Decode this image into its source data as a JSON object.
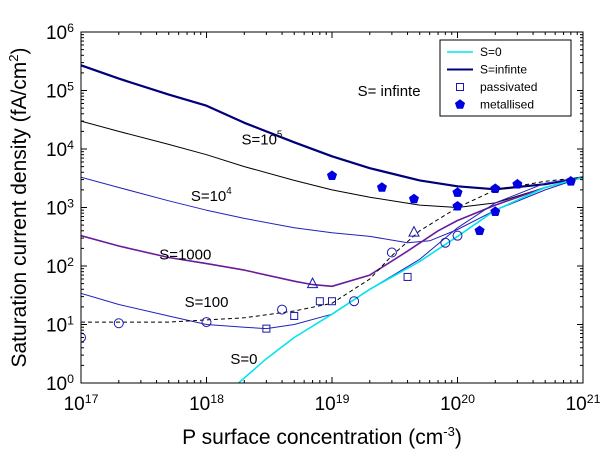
{
  "chart_data": {
    "type": "line",
    "xlabel": "P surface concentration (cm",
    "xlabel_sup": "-3",
    "xlabel_close": ")",
    "ylabel": "Saturation current density (fA/cm",
    "ylabel_sup": "2",
    "ylabel_close": ")",
    "x_scale": "log",
    "y_scale": "log",
    "xlim": [
      1e+17,
      1e+21
    ],
    "ylim": [
      1,
      1000000
    ],
    "x_ticks": [
      {
        "value": 1e+17,
        "base": "10",
        "exp": "17"
      },
      {
        "value": 1e+18,
        "base": "10",
        "exp": "18"
      },
      {
        "value": 1e+19,
        "base": "10",
        "exp": "19"
      },
      {
        "value": 1e+20,
        "base": "10",
        "exp": "20"
      },
      {
        "value": 1e+21,
        "base": "10",
        "exp": "21"
      }
    ],
    "y_ticks": [
      {
        "value": 1,
        "base": "10",
        "exp": "0"
      },
      {
        "value": 10,
        "base": "10",
        "exp": "1"
      },
      {
        "value": 100,
        "base": "10",
        "exp": "2"
      },
      {
        "value": 1000,
        "base": "10",
        "exp": "3"
      },
      {
        "value": 10000,
        "base": "10",
        "exp": "4"
      },
      {
        "value": 100000,
        "base": "10",
        "exp": "5"
      },
      {
        "value": 1000000,
        "base": "10",
        "exp": "6"
      }
    ],
    "colors": {
      "s_zero": "#00e5ee",
      "s_infinite": "#00007a",
      "s_1e5": "#000000",
      "s_1e4": "#2222bb",
      "s_1000": "#6a1b9a",
      "s_100": "#2222bb",
      "dashed": "#000000",
      "markers": "#1a1aa8",
      "metallised": "#0000e0"
    },
    "legend": {
      "placement": "top-right",
      "entries": [
        {
          "key": "s0",
          "label": "S=0",
          "kind": "line",
          "color": "#00e5ee"
        },
        {
          "key": "sinf",
          "label": "S=infinte",
          "kind": "line",
          "color": "#00007a"
        },
        {
          "key": "pass",
          "label": "passivated",
          "kind": "open-square",
          "color": "#1a1aa8"
        },
        {
          "key": "met",
          "label": "metallised",
          "kind": "filled-pentagon",
          "color": "#0000e0"
        }
      ]
    },
    "annotations": [
      {
        "key": "ann-inf",
        "text": "S= infinte",
        "x": 1.6e+19,
        "y": 80000
      },
      {
        "key": "ann-1e5",
        "text": "S=10",
        "sup": "5",
        "x": 1.9e+18,
        "y": 12000
      },
      {
        "key": "ann-1e4",
        "text": "S=10",
        "sup": "4",
        "x": 7.5e+17,
        "y": 1300
      },
      {
        "key": "ann-1000",
        "text": "S=1000",
        "x": 4.2e+17,
        "y": 130
      },
      {
        "key": "ann-100",
        "text": "S=100",
        "x": 6.7e+17,
        "y": 20
      },
      {
        "key": "ann-0",
        "text": "S=0",
        "x": 1.55e+18,
        "y": 2.1
      }
    ],
    "series": [
      {
        "key": "s-infinite",
        "style": "solid",
        "color": "#00007a",
        "width": 2.2,
        "x": [
          1e+17,
          2e+17,
          5e+17,
          1e+18,
          2e+18,
          5e+18,
          1e+19,
          2e+19,
          5e+19,
          1e+20,
          2e+20,
          5e+20,
          8e+20,
          1e+21
        ],
        "y": [
          270000,
          160000,
          85000,
          55000,
          28000,
          13000,
          7500,
          4700,
          2900,
          2300,
          2050,
          2500,
          3000,
          3300
        ]
      },
      {
        "key": "s-1e5",
        "style": "solid",
        "color": "#000000",
        "width": 1,
        "x": [
          1e+17,
          2e+17,
          5e+17,
          1e+18,
          2e+18,
          5e+18,
          1e+19,
          2e+19,
          5e+19,
          1e+20,
          2e+20,
          5e+20,
          1e+21
        ],
        "y": [
          30000,
          20000,
          12000,
          8000,
          5000,
          2900,
          2000,
          1500,
          1100,
          1000,
          1200,
          2200,
          3300
        ]
      },
      {
        "key": "s-1e4",
        "style": "solid",
        "color": "#2222bb",
        "width": 1,
        "x": [
          1e+17,
          2e+17,
          5e+17,
          1e+18,
          2e+18,
          5e+18,
          1e+19,
          2e+19,
          4e+19,
          6e+19,
          1e+20,
          2e+20,
          5e+20,
          1e+21
        ],
        "y": [
          3300,
          2200,
          1300,
          900,
          650,
          450,
          370,
          320,
          250,
          270,
          420,
          900,
          2000,
          3300
        ]
      },
      {
        "key": "s-1000",
        "style": "solid",
        "color": "#6a1b9a",
        "width": 1.6,
        "x": [
          1e+17,
          2e+17,
          5e+17,
          1e+18,
          2e+18,
          5e+18,
          7e+18,
          1e+19,
          2e+19,
          4e+19,
          7e+19,
          1e+20,
          2e+20,
          5e+20,
          1e+21
        ],
        "y": [
          330,
          220,
          140,
          110,
          85,
          55,
          48,
          45,
          70,
          180,
          400,
          600,
          1100,
          2200,
          3300
        ]
      },
      {
        "key": "s-100",
        "style": "solid",
        "color": "#2222bb",
        "width": 1,
        "x": [
          1e+17,
          2e+17,
          5e+17,
          1e+18,
          2e+18,
          3e+18,
          5e+18,
          1e+19,
          2e+19,
          5e+19,
          1e+20,
          2e+20,
          5e+20,
          1e+21
        ],
        "y": [
          34,
          22,
          14,
          10,
          9,
          8.5,
          10,
          15,
          40,
          130,
          450,
          1200,
          2600,
          3300
        ]
      },
      {
        "key": "s-0",
        "style": "solid",
        "color": "#00e5ee",
        "width": 1.6,
        "x": [
          1.8e+18,
          3e+18,
          5e+18,
          1e+19,
          2e+19,
          5e+19,
          1e+20,
          2e+20,
          5e+20,
          1e+21
        ],
        "y": [
          1,
          2.6,
          6,
          15,
          40,
          120,
          320,
          900,
          2200,
          3300
        ]
      },
      {
        "key": "dashed-fit",
        "style": "dashed",
        "color": "#000000",
        "width": 1,
        "x": [
          1e+17,
          5e+17,
          1e+18,
          2e+18,
          5e+18,
          1e+19,
          2e+19,
          3e+19,
          5e+19,
          1e+20,
          2e+20,
          5e+20,
          1e+21
        ],
        "y": [
          11,
          11,
          12,
          13,
          17,
          23,
          60,
          150,
          400,
          1000,
          2000,
          2800,
          3300
        ]
      }
    ],
    "scatter": [
      {
        "key": "open-circles",
        "marker": "open-circle",
        "color": "#1a1aa8",
        "points": [
          [
            1e+17,
            6
          ],
          [
            2e+17,
            10.5
          ],
          [
            1e+18,
            11
          ],
          [
            4e+18,
            18
          ],
          [
            1.5e+19,
            25
          ],
          [
            3e+19,
            170
          ],
          [
            8e+19,
            250
          ],
          [
            1e+20,
            330
          ]
        ]
      },
      {
        "key": "open-squares",
        "marker": "open-square",
        "color": "#1a1aa8",
        "points": [
          [
            3e+18,
            8.5
          ],
          [
            5e+18,
            14
          ],
          [
            8e+18,
            25
          ],
          [
            1e+19,
            25
          ],
          [
            4e+19,
            65
          ]
        ]
      },
      {
        "key": "open-triangles",
        "marker": "open-triangle",
        "color": "#1a1aa8",
        "points": [
          [
            7e+18,
            50
          ],
          [
            4.5e+19,
            380
          ]
        ]
      },
      {
        "key": "metallised-points",
        "marker": "filled-pentagon",
        "color": "#0000e0",
        "points": [
          [
            1e+19,
            3500
          ],
          [
            2.5e+19,
            2200
          ],
          [
            4.5e+19,
            1400
          ],
          [
            1e+20,
            1800
          ],
          [
            1e+20,
            1050
          ],
          [
            1.5e+20,
            400
          ],
          [
            2e+20,
            2100
          ],
          [
            2e+20,
            850
          ],
          [
            3e+20,
            2500
          ],
          [
            8e+20,
            2800
          ]
        ]
      }
    ]
  }
}
